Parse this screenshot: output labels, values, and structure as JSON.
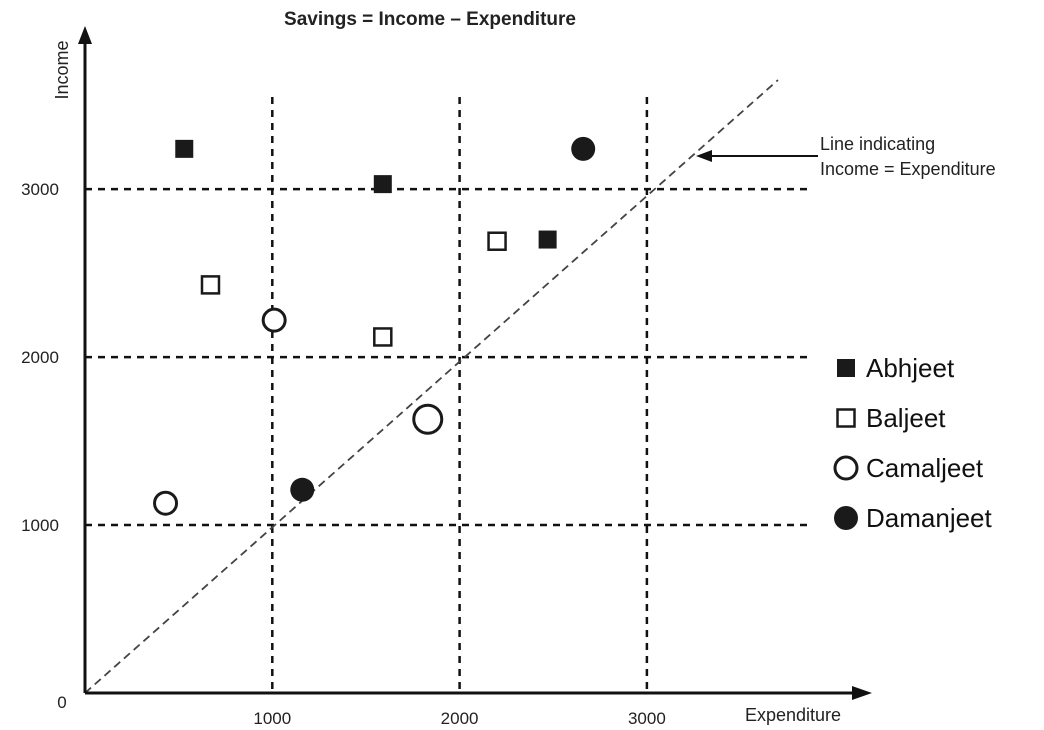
{
  "chart_data": {
    "type": "scatter",
    "title": "Savings = Income – Expenditure",
    "xlabel": "Expenditure",
    "ylabel": "Income",
    "xlim": [
      0,
      3700
    ],
    "ylim": [
      0,
      3650
    ],
    "x_ticks": [
      "1000",
      "2000",
      "3000"
    ],
    "y_ticks": [
      "1000",
      "2000",
      "3000"
    ],
    "origin_label": "0",
    "grid": true,
    "reference_line": {
      "label_line1": "Line indicating",
      "label_line2": "Income = Expenditure",
      "x": [
        0,
        3700
      ],
      "y": [
        0,
        3650
      ]
    },
    "legend_position": "right",
    "series": [
      {
        "name": "Abhjeet",
        "marker": "filled-square",
        "color": "#1a1a1a",
        "points": [
          {
            "x": 530,
            "y": 3240
          },
          {
            "x": 1590,
            "y": 3030
          },
          {
            "x": 2470,
            "y": 2700
          }
        ]
      },
      {
        "name": "Baljeet",
        "marker": "open-square",
        "color": "#1a1a1a",
        "points": [
          {
            "x": 670,
            "y": 2430
          },
          {
            "x": 1590,
            "y": 2120
          },
          {
            "x": 2200,
            "y": 2690
          }
        ]
      },
      {
        "name": "Camaljeet",
        "marker": "open-circle",
        "color": "#1a1a1a",
        "points": [
          {
            "x": 430,
            "y": 1130,
            "size": "medium"
          },
          {
            "x": 1010,
            "y": 2220,
            "size": "medium"
          },
          {
            "x": 1830,
            "y": 1630,
            "size": "large"
          }
        ]
      },
      {
        "name": "Damanjeet",
        "marker": "filled-circle",
        "color": "#1a1a1a",
        "points": [
          {
            "x": 1160,
            "y": 1210,
            "size": "medium"
          },
          {
            "x": 2660,
            "y": 3240,
            "size": "medium"
          }
        ]
      }
    ]
  }
}
